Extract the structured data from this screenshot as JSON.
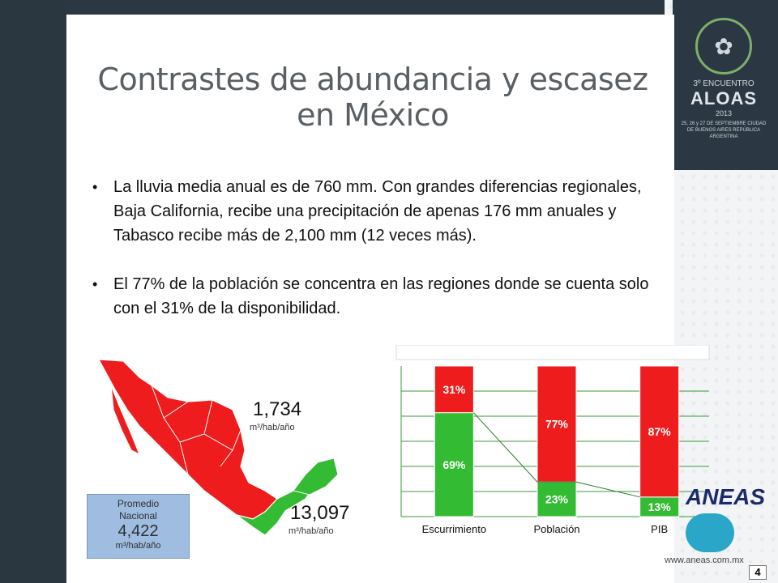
{
  "slide": {
    "title": "Contrastes de abundancia y escasez en México",
    "bullets": [
      "La lluvia media anual es de 760 mm. Con grandes diferencias regionales, Baja California, recibe una precipitación de apenas 176 mm anuales y Tabasco recibe más de 2,100 mm (12 veces más).",
      "El 77% de la población se concentra en las regiones donde se cuenta solo con el 31% de la disponibilidad."
    ],
    "page_number": "4"
  },
  "map": {
    "north_value": "1,734",
    "north_unit": "m³/hab/año",
    "south_value": "13,097",
    "south_unit": "m³/hab/año",
    "promedio_label_1": "Promedio",
    "promedio_label_2": "Nacional",
    "promedio_value": "4,422",
    "promedio_unit": "m³/hab/año",
    "colors": {
      "north": "#ee1c1c",
      "south": "#33bb33"
    }
  },
  "logos": {
    "aloas_line1": "3º ENCUENTRO",
    "aloas_name": "ALOAS",
    "aloas_year": "2013",
    "aloas_small": "25, 26 y 27 DE SEPTIEMBRE CIUDAD DE BUENOS AIRES REPÚBLICA ARGENTINA",
    "aneas_name": "ANEAS",
    "aneas_url": "www.aneas.com.mx"
  },
  "chart_data": {
    "type": "bar",
    "stacked": true,
    "categories": [
      "Escurrimiento",
      "Población",
      "PIB"
    ],
    "series": [
      {
        "values": [
          69,
          23,
          13
        ],
        "labels": [
          "69%",
          "23%",
          "13%"
        ],
        "color": "#33bb33"
      },
      {
        "values": [
          31,
          77,
          87
        ],
        "labels": [
          "31%",
          "77%",
          "87%"
        ],
        "color": "#ee1c1c"
      }
    ],
    "ylim": [
      0,
      100
    ],
    "grid": true
  }
}
